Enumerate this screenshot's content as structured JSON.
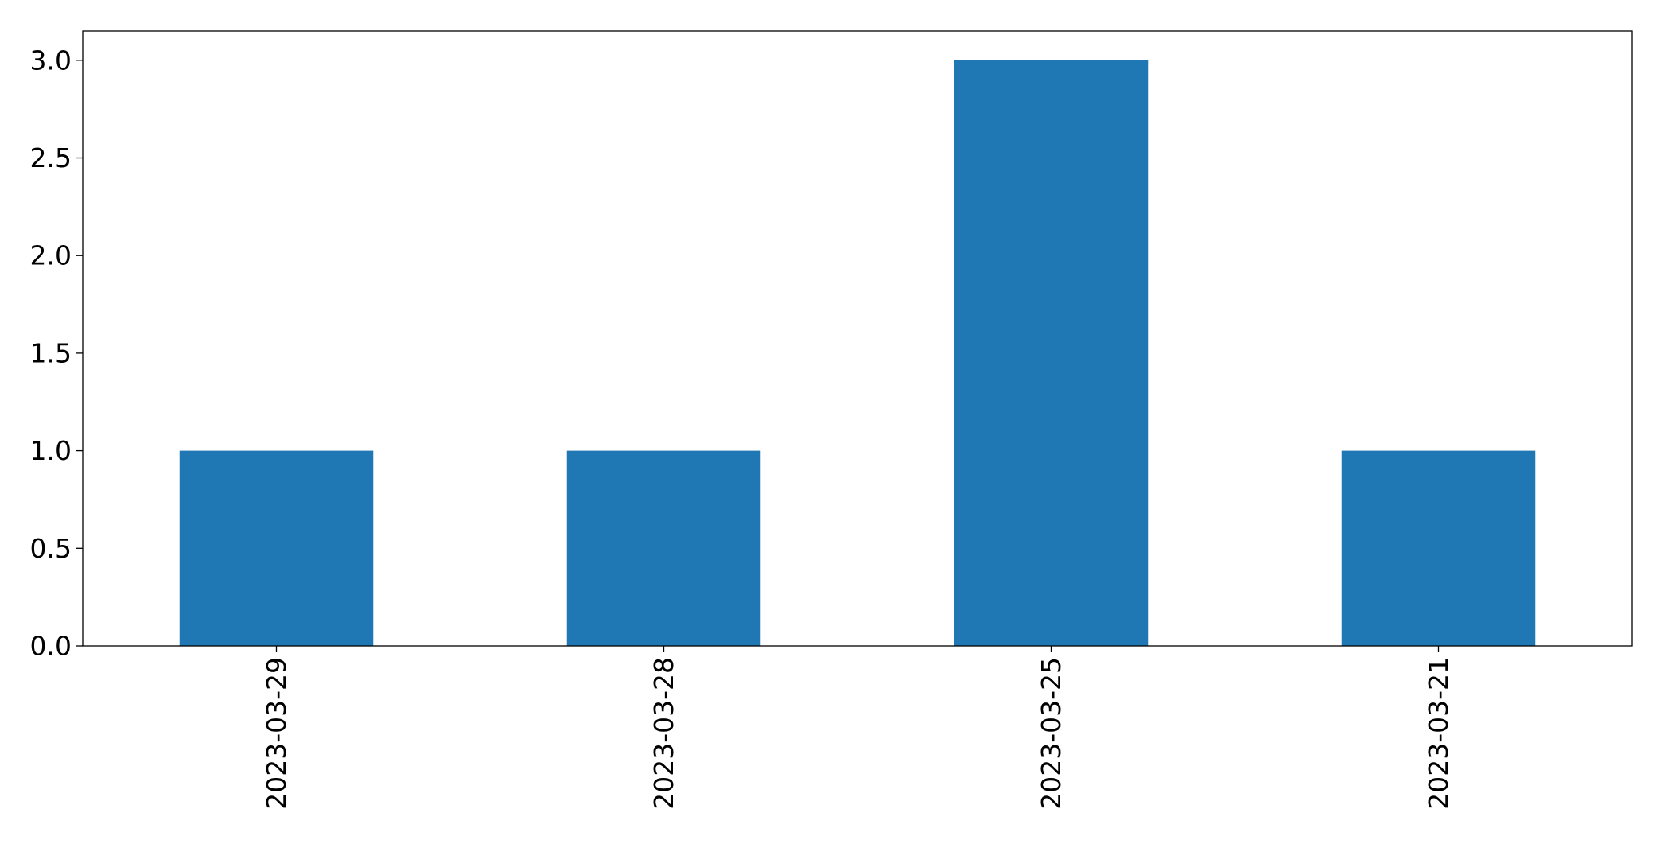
{
  "chart_data": {
    "type": "bar",
    "categories": [
      "2023-03-29",
      "2023-03-28",
      "2023-03-25",
      "2023-03-21"
    ],
    "series": [
      {
        "values": [
          1,
          1,
          3,
          1
        ]
      }
    ],
    "title": "",
    "xlabel": "",
    "ylabel": "",
    "ylim": [
      0,
      3.15
    ],
    "yticks": [
      "0.0",
      "0.5",
      "1.0",
      "1.5",
      "2.0",
      "2.5",
      "3.0"
    ],
    "ytick_values": [
      0,
      0.5,
      1.0,
      1.5,
      2.0,
      2.5,
      3.0
    ],
    "xtick_rotation": "vertical",
    "grid": false,
    "legend": "none",
    "bar_color": "#1f77b4"
  }
}
